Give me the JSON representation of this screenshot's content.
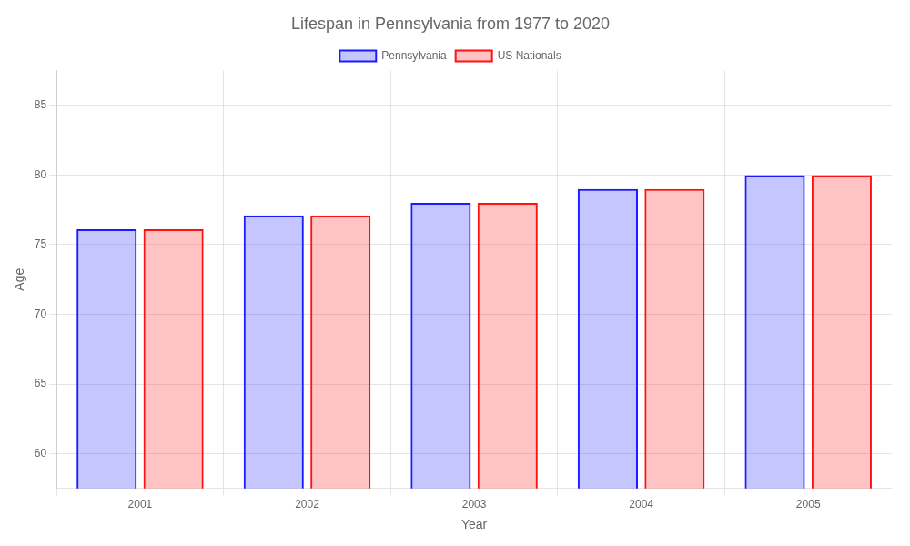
{
  "chart_data": {
    "type": "bar",
    "title": "Lifespan in Pennsylvania from 1977 to 2020",
    "xlabel": "Year",
    "ylabel": "Age",
    "categories": [
      "2001",
      "2002",
      "2003",
      "2004",
      "2005"
    ],
    "series": [
      {
        "name": "Pennsylvania",
        "color": "#1a1aff",
        "values": [
          76.1,
          77.1,
          78.0,
          79.0,
          80.0
        ]
      },
      {
        "name": "US Nationals",
        "color": "#ff1111",
        "values": [
          76.1,
          77.1,
          78.0,
          79.0,
          80.0
        ]
      }
    ],
    "ylim": [
      57.5,
      87.5
    ],
    "yticks": [
      60,
      65,
      70,
      75,
      80,
      85
    ],
    "grid": true,
    "legend": "top"
  }
}
